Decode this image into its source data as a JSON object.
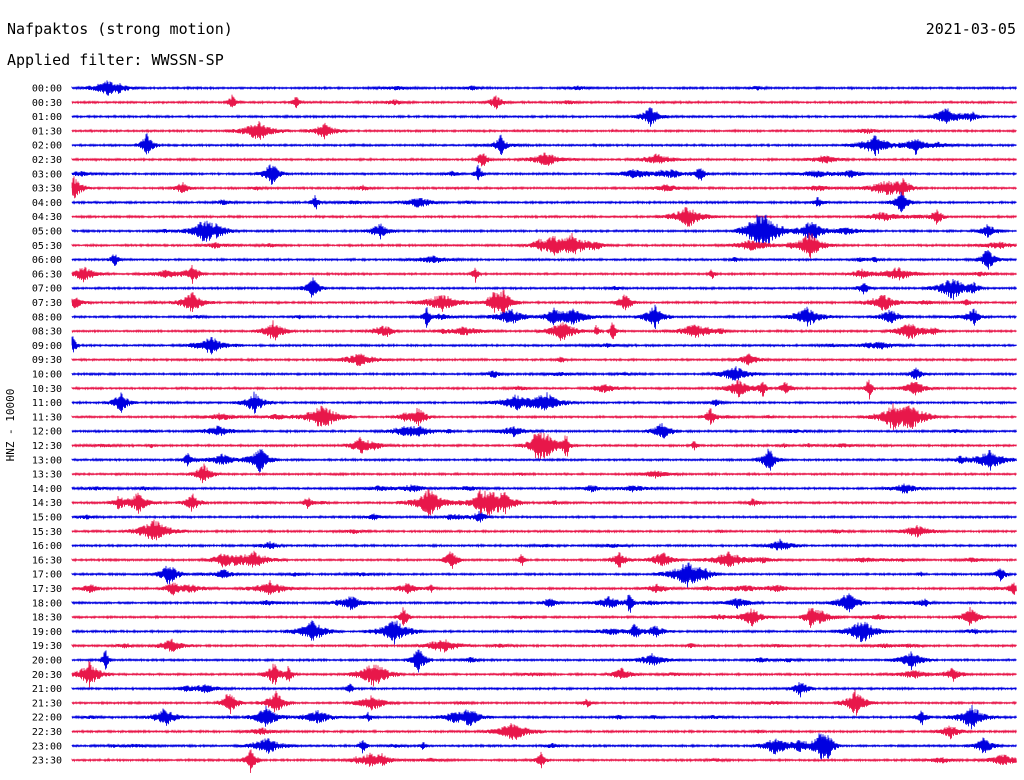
{
  "header": {
    "title": "Nafpaktos (strong motion)",
    "date": "2021-03-05",
    "filter": "Applied filter: WWSSN-SP"
  },
  "chart_data": {
    "type": "line",
    "ylabel": "HNZ - 10000",
    "series_colors": [
      "#0000e0",
      "#e8174a"
    ],
    "time_labels": [
      "00:00",
      "00:30",
      "01:00",
      "01:30",
      "02:00",
      "02:30",
      "03:00",
      "03:30",
      "04:00",
      "04:30",
      "05:00",
      "05:30",
      "06:00",
      "06:30",
      "07:00",
      "07:30",
      "08:00",
      "08:30",
      "09:00",
      "09:30",
      "10:00",
      "10:30",
      "11:00",
      "11:30",
      "12:00",
      "12:30",
      "13:00",
      "13:30",
      "14:00",
      "14:30",
      "15:00",
      "15:30",
      "16:00",
      "16:30",
      "17:00",
      "17:30",
      "18:00",
      "18:30",
      "19:00",
      "19:30",
      "20:00",
      "20:30",
      "21:00",
      "21:30",
      "22:00",
      "22:30",
      "23:00",
      "23:30"
    ],
    "x_range_minutes": [
      0,
      30
    ],
    "grid": false,
    "legend": "none"
  }
}
